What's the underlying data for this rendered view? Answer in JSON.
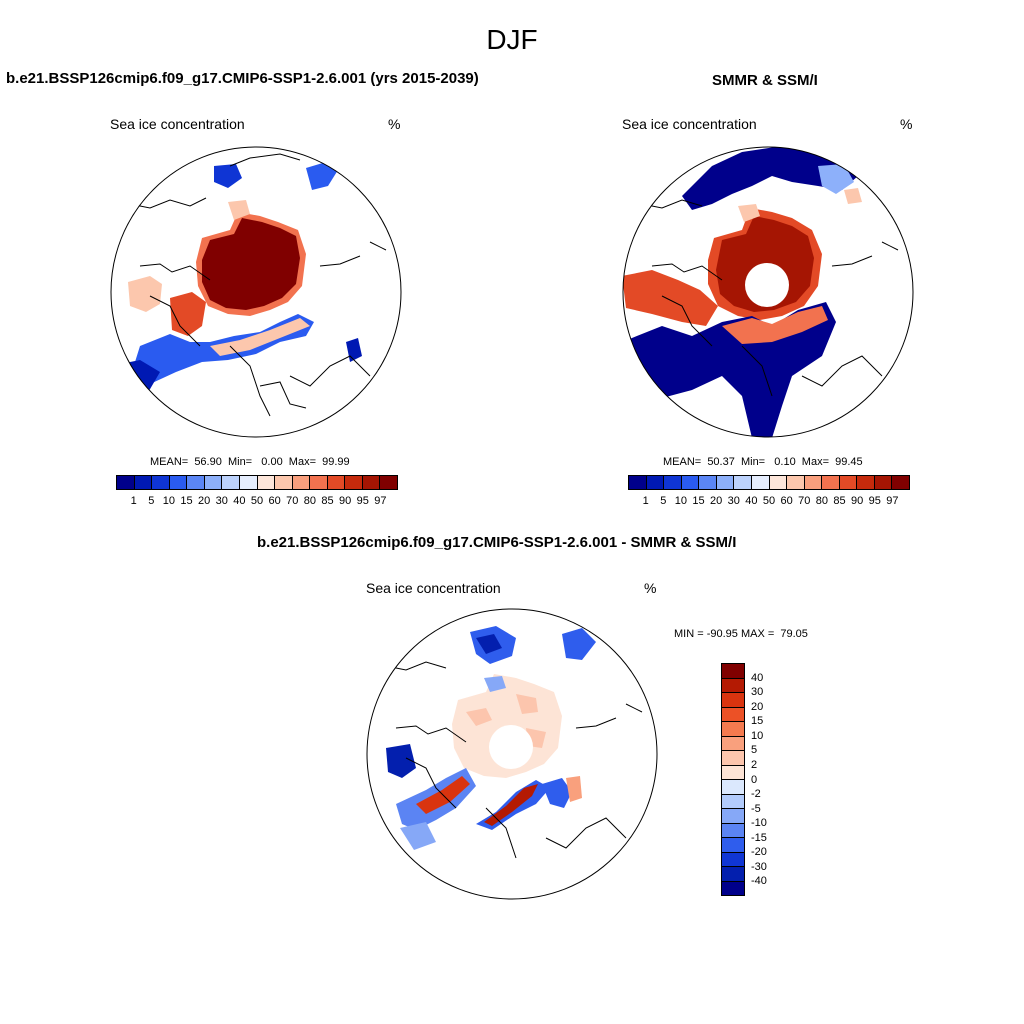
{
  "figure": {
    "title": "DJF"
  },
  "panels": [
    {
      "title": "b.e21.BSSP126cmip6.f09_g17.CMIP6-SSP1-2.6.001 (yrs 2015-2039)",
      "left_label": "Sea ice concentration",
      "right_label": "%",
      "stats": "MEAN=  56.90  Min=   0.00  Max=  99.99"
    },
    {
      "title": "SMMR & SSM/I",
      "left_label": "Sea ice concentration",
      "right_label": "%",
      "stats": "MEAN=  50.37  Min=   0.10  Max=  99.45"
    },
    {
      "title": "b.e21.BSSP126cmip6.f09_g17.CMIP6-SSP1-2.6.001 - SMMR & SSM/I",
      "left_label": "Sea ice concentration",
      "right_label": "%",
      "stats": "MIN = -90.95 MAX =  79.05"
    }
  ],
  "colorbar_abs": {
    "labels": [
      "1",
      "5",
      "10",
      "15",
      "20",
      "30",
      "40",
      "50",
      "60",
      "70",
      "80",
      "85",
      "90",
      "95",
      "97"
    ],
    "colors": [
      "#00008b",
      "#0019b3",
      "#0f35d4",
      "#2a5bf0",
      "#5b86f5",
      "#8db0fa",
      "#bcd2fc",
      "#e6eefe",
      "#fde6da",
      "#fcc7ad",
      "#f99f7d",
      "#f2724f",
      "#e34a26",
      "#c52a0c",
      "#a51503",
      "#800000"
    ]
  },
  "colorbar_diff": {
    "labels": [
      "40",
      "30",
      "20",
      "15",
      "10",
      "5",
      "2",
      "0",
      "-2",
      "-5",
      "-10",
      "-15",
      "-20",
      "-30",
      "-40"
    ],
    "colors": [
      "#800000",
      "#b41a03",
      "#d9340f",
      "#ec5126",
      "#f47a4f",
      "#f9a07d",
      "#fcc5ad",
      "#fde4d6",
      "#dbe8fd",
      "#b2cbfb",
      "#86a8f7",
      "#5b84f3",
      "#2f5ded",
      "#1036d4",
      "#031fae",
      "#00008b"
    ]
  }
}
